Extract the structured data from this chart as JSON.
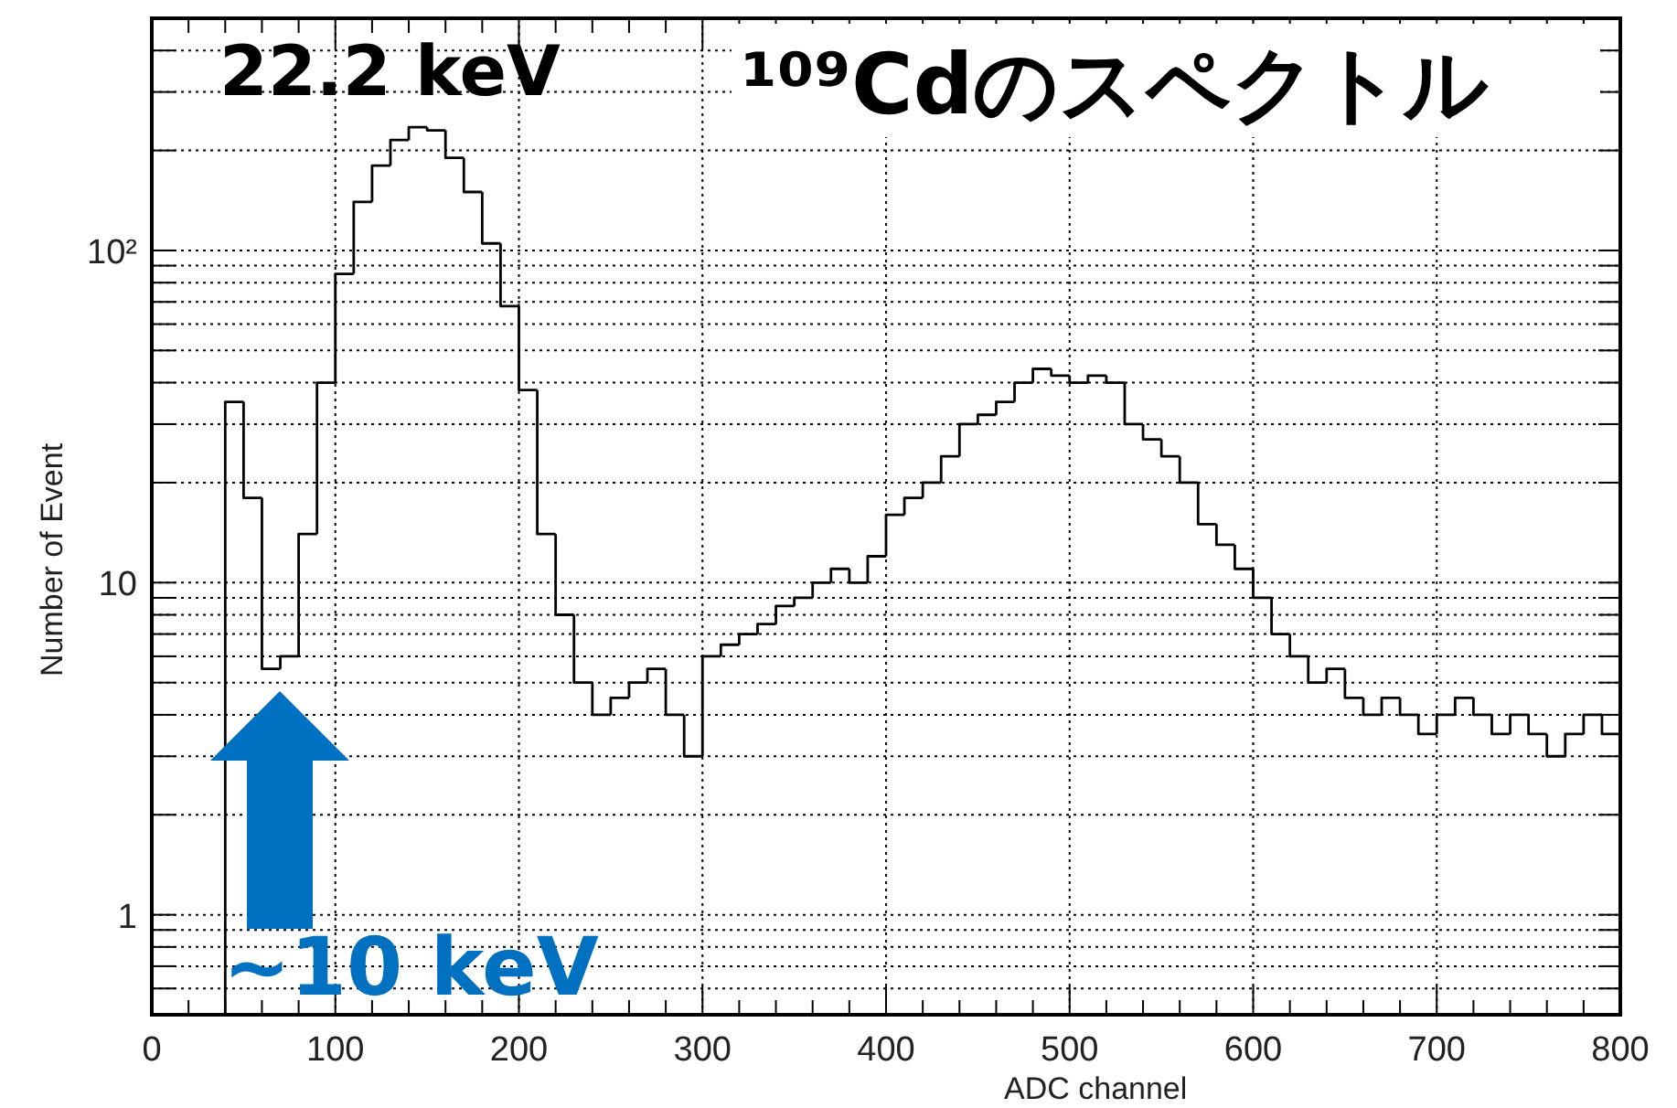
{
  "chart_data": {
    "type": "histogram",
    "title": "¹⁰⁹Cdのスペクトル",
    "xlabel": "ADC channel",
    "ylabel": "Number of Event",
    "bins": [
      40,
      50,
      60,
      70,
      80,
      90,
      100,
      110,
      120,
      130,
      140,
      150,
      160,
      170,
      180,
      190,
      200,
      210,
      220,
      230,
      240,
      250,
      260,
      270,
      280,
      290,
      300,
      310,
      320,
      330,
      340,
      350,
      360,
      370,
      380,
      390,
      400,
      410,
      420,
      430,
      440,
      450,
      460,
      470,
      480,
      490,
      500,
      510,
      520,
      530,
      540,
      550,
      560,
      570,
      580,
      590,
      600,
      610,
      620,
      630,
      640,
      650,
      660,
      670,
      680,
      690,
      700,
      710,
      720,
      730,
      740,
      750,
      760,
      770,
      780,
      790,
      800
    ],
    "values": [
      35,
      18,
      5.5,
      6,
      14,
      40,
      85,
      140,
      180,
      215,
      235,
      230,
      190,
      150,
      105,
      68,
      38,
      14,
      8,
      5,
      4,
      4.5,
      5,
      5.5,
      4,
      3,
      6,
      6.5,
      7,
      7.5,
      8.5,
      9,
      10,
      11,
      10,
      12,
      16,
      18,
      20,
      24,
      30,
      32,
      35,
      40,
      44,
      42,
      40,
      42,
      40,
      30,
      27,
      24,
      20,
      15,
      13,
      11,
      9,
      7,
      6,
      5,
      5.5,
      4.5,
      4,
      4.5,
      4,
      3.5,
      4,
      4.5,
      4,
      3.5,
      4,
      3.5,
      3,
      3.5,
      4,
      3.5
    ],
    "color": "#000000",
    "log": "y",
    "xlim": [
      0,
      800
    ],
    "xticks": [
      0,
      {
        "value": 20,
        "label": null
      },
      {
        "value": 40,
        "label": null
      },
      {
        "value": 60,
        "label": null
      },
      {
        "value": 80,
        "label": null
      },
      100,
      {
        "value": 120,
        "label": null
      },
      {
        "value": 140,
        "label": null
      },
      {
        "value": 160,
        "label": null
      },
      {
        "value": 180,
        "label": null
      },
      200,
      {
        "value": 220,
        "label": null
      },
      {
        "value": 240,
        "label": null
      },
      {
        "value": 260,
        "label": null
      },
      {
        "value": 280,
        "label": null
      },
      300,
      {
        "value": 320,
        "label": null
      },
      {
        "value": 340,
        "label": null
      },
      {
        "value": 360,
        "label": null
      },
      {
        "value": 380,
        "label": null
      },
      400,
      {
        "value": 420,
        "label": null
      },
      {
        "value": 440,
        "label": null
      },
      {
        "value": 460,
        "label": null
      },
      {
        "value": 480,
        "label": null
      },
      500,
      {
        "value": 520,
        "label": null
      },
      {
        "value": 540,
        "label": null
      },
      {
        "value": 560,
        "label": null
      },
      {
        "value": 580,
        "label": null
      },
      600,
      {
        "value": 620,
        "label": null
      },
      {
        "value": 640,
        "label": null
      },
      {
        "value": 660,
        "label": null
      },
      {
        "value": 680,
        "label": null
      },
      700,
      {
        "value": 720,
        "label": null
      },
      {
        "value": 740,
        "label": null
      },
      {
        "value": 760,
        "label": null
      },
      {
        "value": 780,
        "label": null
      },
      800
    ],
    "ylim": [
      0.5,
      500
    ],
    "yticks": [
      {
        "value": 0.6,
        "label": null
      },
      {
        "value": 0.7,
        "label": null
      },
      {
        "value": 0.8,
        "label": null
      },
      {
        "value": 0.9,
        "label": null
      },
      1,
      {
        "value": 2,
        "label": null
      },
      {
        "value": 3,
        "label": null
      },
      {
        "value": 4,
        "label": null
      },
      {
        "value": 5,
        "label": null
      },
      {
        "value": 6,
        "label": null
      },
      {
        "value": 7,
        "label": null
      },
      {
        "value": 8,
        "label": null
      },
      {
        "value": 9,
        "label": null
      },
      10,
      {
        "value": 20,
        "label": null
      },
      {
        "value": 30,
        "label": null
      },
      {
        "value": 40,
        "label": null
      },
      {
        "value": 50,
        "label": null
      },
      {
        "value": 60,
        "label": null
      },
      {
        "value": 70,
        "label": null
      },
      {
        "value": 80,
        "label": null
      },
      {
        "value": 90,
        "label": null
      },
      {
        "value": 100,
        "label": "10²"
      },
      {
        "value": 200,
        "label": null
      },
      {
        "value": 300,
        "label": null
      },
      {
        "value": 400,
        "label": null
      }
    ],
    "grid": true,
    "annotations": [
      "22.2 keV",
      "~10 keV"
    ]
  }
}
